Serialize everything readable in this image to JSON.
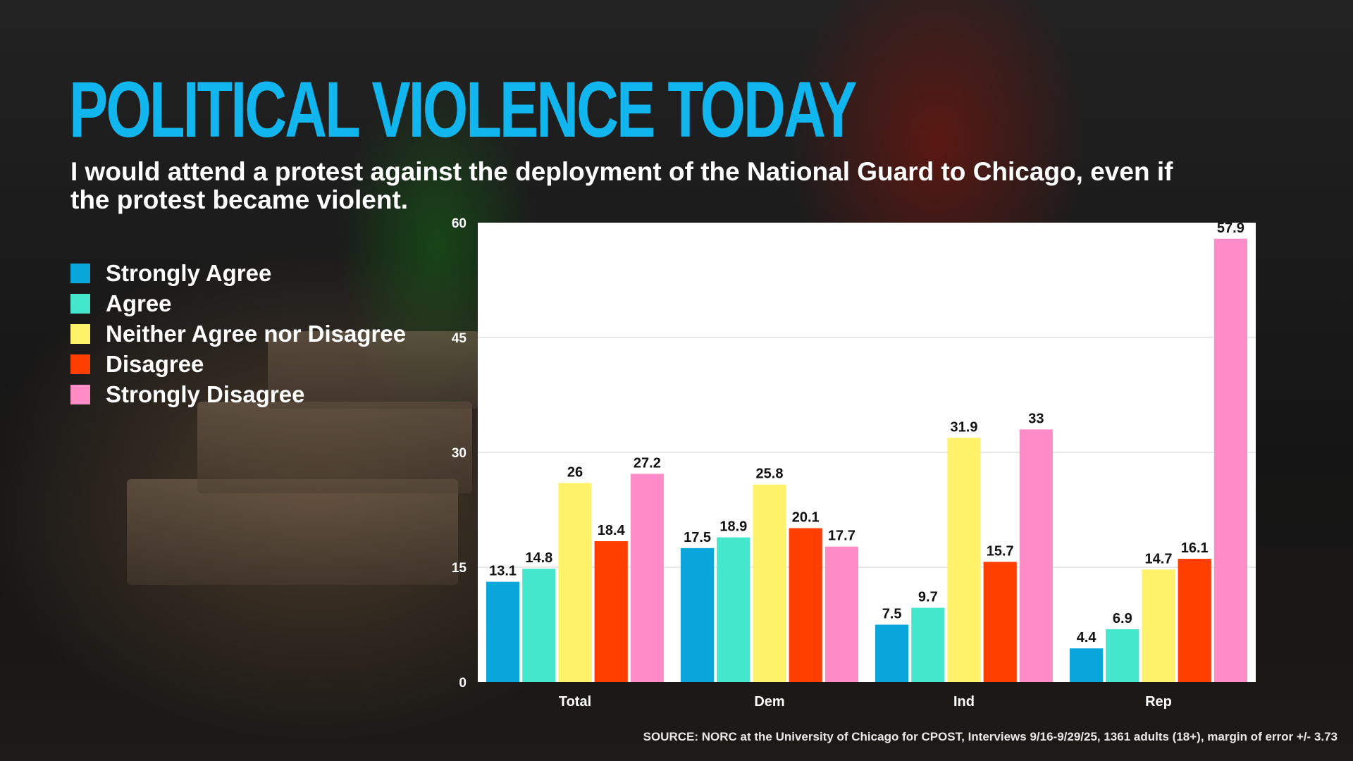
{
  "header": {
    "title": "POLITICAL VIOLENCE TODAY",
    "subtitle": "I would attend a protest against the deployment of the National Guard to Chicago, even if the protest became violent."
  },
  "source": "SOURCE: NORC at the University of Chicago for CPOST, Interviews 9/16-9/29/25, 1361 adults (18+), margin of error +/- 3.73",
  "colors": {
    "title": "#12b6ee",
    "plot_background": "#ffffff",
    "gridline": "#d0d0d0"
  },
  "chart_data": {
    "type": "bar",
    "title": "",
    "xlabel": "",
    "ylabel": "",
    "ylim": [
      0,
      60
    ],
    "yticks": [
      0,
      15,
      30,
      45,
      60
    ],
    "grid": true,
    "legend_position": "left",
    "categories": [
      "Total",
      "Dem",
      "Ind",
      "Rep"
    ],
    "series": [
      {
        "name": "Strongly Agree",
        "color": "#0aa5da",
        "values": [
          13.1,
          17.5,
          7.5,
          4.4
        ]
      },
      {
        "name": "Agree",
        "color": "#44e6cc",
        "values": [
          14.8,
          18.9,
          9.7,
          6.9
        ]
      },
      {
        "name": "Neither Agree nor Disagree",
        "color": "#fff26b",
        "values": [
          26,
          25.8,
          31.9,
          14.7
        ]
      },
      {
        "name": "Disagree",
        "color": "#ff3f00",
        "values": [
          18.4,
          20.1,
          15.7,
          16.1
        ]
      },
      {
        "name": "Strongly Disagree",
        "color": "#ff8cc6",
        "values": [
          27.2,
          17.7,
          33,
          57.9
        ]
      }
    ]
  }
}
